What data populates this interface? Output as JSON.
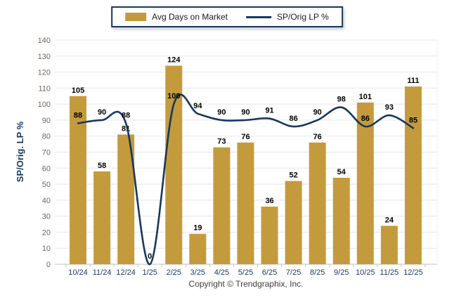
{
  "page": {
    "background": "#ffffff"
  },
  "legend": {
    "border_color": "#17375E",
    "items": [
      {
        "label": "Avg Days on Market",
        "swatch": "bar-swatch",
        "color": "#C49B3C"
      },
      {
        "label": "SP/Orig LP %",
        "swatch": "line-swatch",
        "color": "#17375E"
      }
    ]
  },
  "chart_data": {
    "type": "combo",
    "categories": [
      "10/24",
      "11/24",
      "12/24",
      "1/25",
      "2/25",
      "3/25",
      "4/25",
      "5/25",
      "6/25",
      "7/25",
      "8/25",
      "9/25",
      "10/25",
      "11/25",
      "12/25"
    ],
    "series": [
      {
        "name": "Avg Days on Market",
        "type": "bar",
        "color": "#C49B3C",
        "values": [
          105,
          58,
          81,
          null,
          124,
          19,
          73,
          76,
          36,
          52,
          76,
          54,
          101,
          24,
          111
        ]
      },
      {
        "name": "SP/Orig LP %",
        "type": "line",
        "color": "#17375E",
        "values": [
          88,
          90,
          88,
          0,
          100,
          94,
          90,
          90,
          91,
          86,
          90,
          98,
          86,
          93,
          85
        ]
      }
    ],
    "ylabel": "SP/Orig. LP %",
    "xlabel": "",
    "ylim": [
      0,
      140
    ],
    "ytick_step": 10,
    "grid": "horizontal",
    "legend_position": "top-center",
    "data_labels": true,
    "colors": {
      "gridline": "#E8E8E8",
      "axis_line": "#BFBFBF",
      "x_tick_label": "#1F3864",
      "y_tick_label": "#70655A",
      "data_label": "#000000",
      "axis_title": "#17375E"
    }
  },
  "footer": {
    "copyright": "Copyright © Trendgraphix, Inc."
  }
}
